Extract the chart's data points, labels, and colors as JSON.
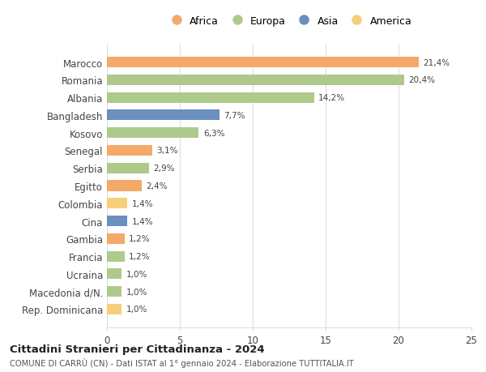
{
  "countries": [
    "Marocco",
    "Romania",
    "Albania",
    "Bangladesh",
    "Kosovo",
    "Senegal",
    "Serbia",
    "Egitto",
    "Colombia",
    "Cina",
    "Gambia",
    "Francia",
    "Ucraina",
    "Macedonia d/N.",
    "Rep. Dominicana"
  ],
  "values": [
    21.4,
    20.4,
    14.2,
    7.7,
    6.3,
    3.1,
    2.9,
    2.4,
    1.4,
    1.4,
    1.2,
    1.2,
    1.0,
    1.0,
    1.0
  ],
  "labels": [
    "21,4%",
    "20,4%",
    "14,2%",
    "7,7%",
    "6,3%",
    "3,1%",
    "2,9%",
    "2,4%",
    "1,4%",
    "1,4%",
    "1,2%",
    "1,2%",
    "1,0%",
    "1,0%",
    "1,0%"
  ],
  "continents": [
    "Africa",
    "Europa",
    "Europa",
    "Asia",
    "Europa",
    "Africa",
    "Europa",
    "Africa",
    "America",
    "Asia",
    "Africa",
    "Europa",
    "Europa",
    "Europa",
    "America"
  ],
  "continent_colors": {
    "Africa": "#F4A869",
    "Europa": "#AECA8A",
    "Asia": "#6B8FBF",
    "America": "#F5D07A"
  },
  "legend_order": [
    "Africa",
    "Europa",
    "Asia",
    "America"
  ],
  "xlim": [
    0,
    25
  ],
  "xticks": [
    0,
    5,
    10,
    15,
    20,
    25
  ],
  "title": "Cittadini Stranieri per Cittadinanza - 2024",
  "subtitle": "COMUNE DI CARRÙ (CN) - Dati ISTAT al 1° gennaio 2024 - Elaborazione TUTTITALIA.IT",
  "background_color": "#ffffff",
  "grid_color": "#dddddd",
  "bar_height": 0.6
}
